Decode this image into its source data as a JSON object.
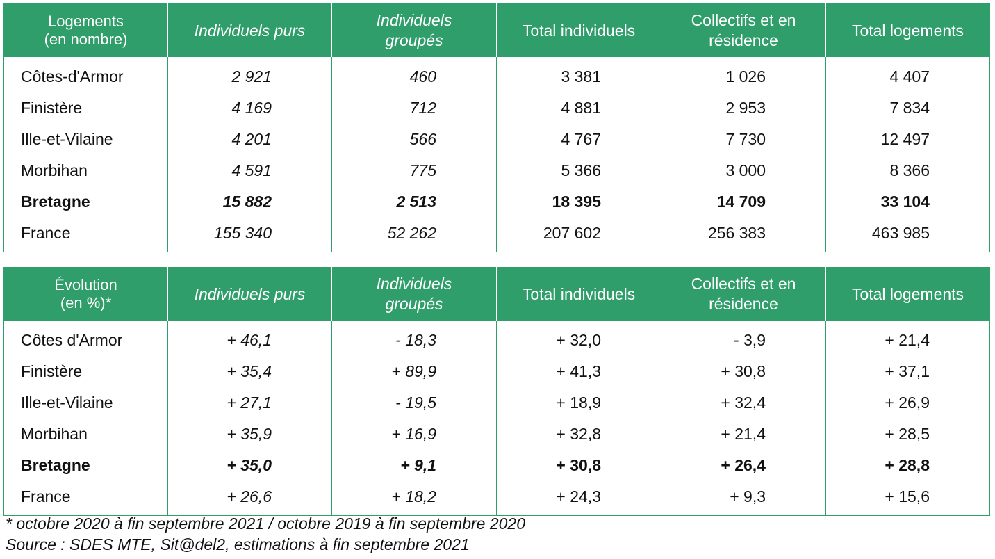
{
  "table1": {
    "headers": [
      "Logements\n(en nombre)",
      "Individuels purs",
      "Individuels\ngroupés",
      "Total individuels",
      "Collectifs et en\nrésidence",
      "Total logements"
    ],
    "rows": [
      {
        "name": "Côtes-d'Armor",
        "values": [
          "2 921",
          "460",
          "3 381",
          "1 026",
          "4 407"
        ]
      },
      {
        "name": "Finistère",
        "values": [
          "4 169",
          "712",
          "4 881",
          "2 953",
          "7 834"
        ]
      },
      {
        "name": "Ille-et-Vilaine",
        "values": [
          "4 201",
          "566",
          "4 767",
          "7 730",
          "12 497"
        ]
      },
      {
        "name": "Morbihan",
        "values": [
          "4 591",
          "775",
          "5 366",
          "3 000",
          "8 366"
        ]
      },
      {
        "name": "Bretagne",
        "values": [
          "15 882",
          "2 513",
          "18 395",
          "14 709",
          "33 104"
        ]
      },
      {
        "name": "France",
        "values": [
          "155 340",
          "52 262",
          "207 602",
          "256 383",
          "463 985"
        ]
      }
    ]
  },
  "table2": {
    "headers": [
      "Évolution\n(en %)*",
      "Individuels purs",
      "Individuels\ngroupés",
      "Total individuels",
      "Collectifs et en\nrésidence",
      "Total logements"
    ],
    "rows": [
      {
        "name": "Côtes d'Armor",
        "values": [
          "+ 46,1",
          "- 18,3",
          "+ 32,0",
          "- 3,9",
          "+ 21,4"
        ]
      },
      {
        "name": "Finistère",
        "values": [
          "+ 35,4",
          "+ 89,9",
          "+ 41,3",
          "+ 30,8",
          "+ 37,1"
        ]
      },
      {
        "name": "Ille-et-Vilaine",
        "values": [
          "+ 27,1",
          "- 19,5",
          "+ 18,9",
          "+ 32,4",
          "+ 26,9"
        ]
      },
      {
        "name": "Morbihan",
        "values": [
          "+ 35,9",
          "+ 16,9",
          "+ 32,8",
          "+ 21,4",
          "+ 28,5"
        ]
      },
      {
        "name": "Bretagne",
        "values": [
          "+ 35,0",
          "+ 9,1",
          "+ 30,8",
          "+ 26,4",
          "+ 28,8"
        ]
      },
      {
        "name": "France",
        "values": [
          "+ 26,6",
          "+ 18,2",
          "+ 24,3",
          "+ 9,3",
          "+ 15,6"
        ]
      }
    ]
  },
  "notes": {
    "footnote": "* octobre 2020 à fin septembre 2021 / octobre 2019 à fin septembre 2020",
    "source": "Source : SDES MTE, Sit@del2, estimations à fin septembre 2021"
  },
  "colors": {
    "header_bg": "#2f9e6b",
    "header_text": "#ffffff",
    "border": "#2f9e6b"
  }
}
